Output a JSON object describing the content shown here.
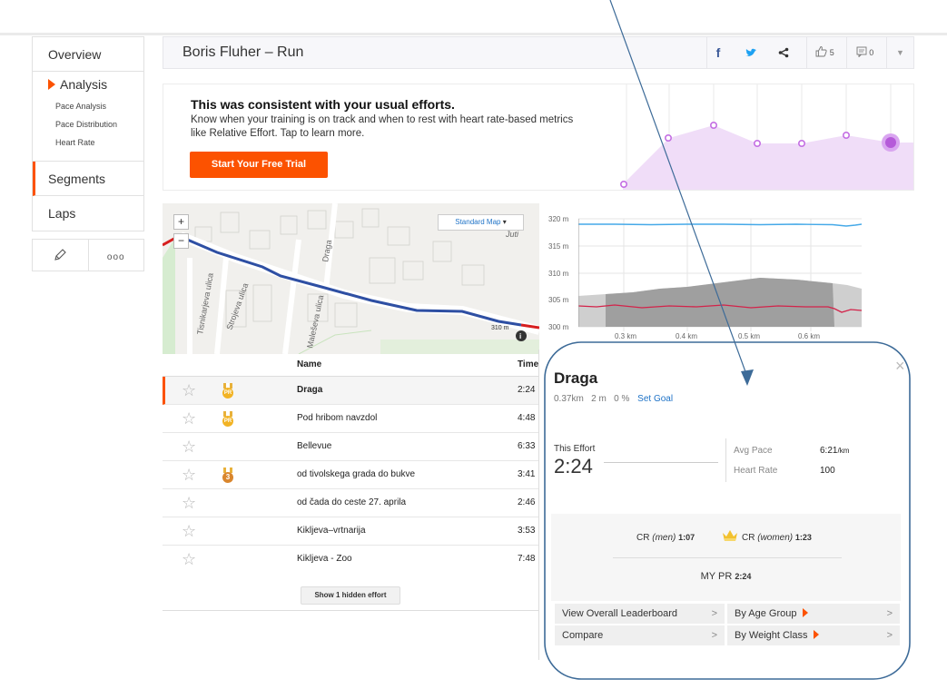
{
  "sidebar": {
    "overview": "Overview",
    "analysis": "Analysis",
    "analysis_items": [
      "Pace Analysis",
      "Pace Distribution",
      "Heart Rate"
    ],
    "segments": "Segments",
    "laps": "Laps",
    "edit_icon": "pencil-icon",
    "more_label": "ooo"
  },
  "header": {
    "title": "Boris Fluher – Run",
    "facebook": "f",
    "twitter_icon": "bird-icon",
    "share_icon": "share-icon",
    "kudos_count": "5",
    "comments_count": "0"
  },
  "promo": {
    "title": "This was consistent with your usual efforts.",
    "text": "Know when your training is on track and when to rest with heart rate-based metrics like Relative Effort. Tap to learn more.",
    "button": "Start Your Free Trial",
    "accent": "#fc5200",
    "chart_color": "#b55ad9"
  },
  "map": {
    "zoom_in": "+",
    "zoom_out": "−",
    "map_type": "Standard Map",
    "labels": [
      "Tisnikarjeva ulica",
      "Strojeva ulica",
      "Maleševa ulica",
      "Draga",
      "310 m",
      "Juti"
    ],
    "info": "i"
  },
  "elevation": {
    "y_labels": [
      "320 m",
      "315 m",
      "310 m",
      "305 m",
      "300 m"
    ],
    "x_labels": [
      "0.3 km",
      "0.4 km",
      "0.5 km",
      "0.6 km"
    ]
  },
  "table": {
    "headers": {
      "name": "Name",
      "time": "Time"
    },
    "rows": [
      {
        "name": "Draga",
        "time": "2:24",
        "medal": "PR"
      },
      {
        "name": "Pod hribom navzdol",
        "time": "4:48",
        "medal": "PR"
      },
      {
        "name": "Bellevue",
        "time": "6:33",
        "medal": ""
      },
      {
        "name": "od tivolskega grada do bukve",
        "time": "3:41",
        "medal": "3"
      },
      {
        "name": "od čada do ceste 27. aprila",
        "time": "2:46",
        "medal": ""
      },
      {
        "name": "Kiklјeva–vrtnarija",
        "time": "3:53",
        "medal": ""
      },
      {
        "name": "Kiklјeva - Zoo",
        "time": "7:48",
        "medal": ""
      }
    ],
    "show_hidden": "Show 1 hidden effort"
  },
  "popup": {
    "title": "Draga",
    "distance": "0.37km",
    "elev": "2 m",
    "grade": "0 %",
    "set_goal": "Set Goal",
    "close": "×",
    "effort_label": "This Effort",
    "effort_value": "2:24",
    "avg_pace_label": "Avg Pace",
    "avg_pace_value": "6:21",
    "avg_pace_unit": "/km",
    "hr_label": "Heart Rate",
    "hr_value": "100",
    "cr_men_label": "CR",
    "cr_men_gender": "(men)",
    "cr_men_value": "1:07",
    "cr_women_label": "CR",
    "cr_women_gender": "(women)",
    "cr_women_value": "1:23",
    "mypr_label": "MY PR",
    "mypr_value": "2:24",
    "links": {
      "overall": "View Overall Leaderboard",
      "age": "By Age Group",
      "compare": "Compare",
      "weight": "By Weight Class"
    }
  }
}
